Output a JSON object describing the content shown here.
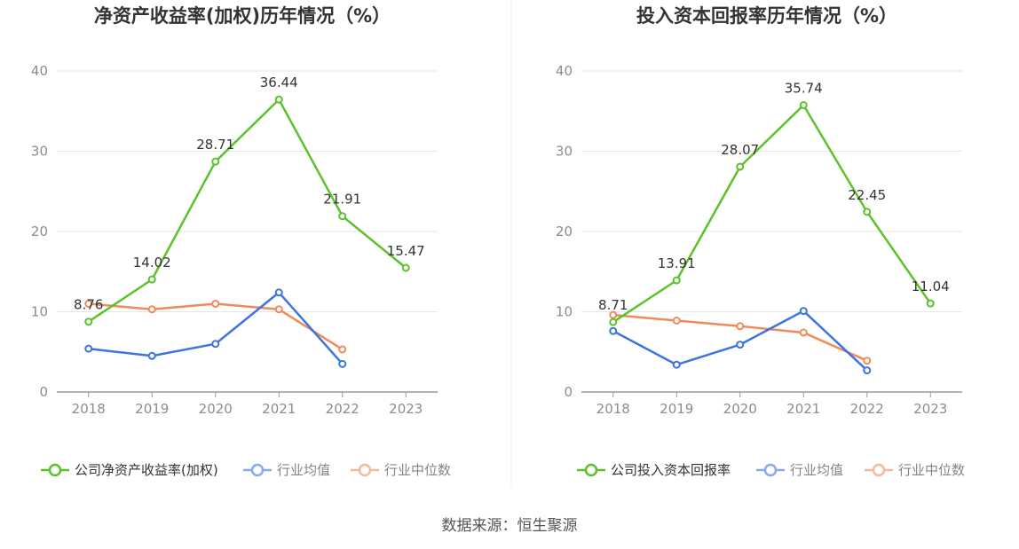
{
  "source": "数据来源：恒生聚源",
  "colors": {
    "company": "#5cc22b",
    "avg": "#3c74e0",
    "median": "#f08a5d"
  },
  "chart_data": [
    {
      "type": "line",
      "title": "净资产收益率(加权)历年情况（%）",
      "x": [
        "2018",
        "2019",
        "2020",
        "2021",
        "2022",
        "2023"
      ],
      "ylim": [
        0,
        40
      ],
      "yticks": [
        "0",
        "10",
        "20",
        "30",
        "40"
      ],
      "grid": true,
      "legend_position": "bottom",
      "series": [
        {
          "name": "公司净资产收益率(加权)",
          "key": "company",
          "values": [
            8.76,
            14.02,
            28.71,
            36.44,
            21.91,
            15.47
          ],
          "labels": [
            "8.76",
            "14.02",
            "28.71",
            "36.44",
            "21.91",
            "15.47"
          ]
        },
        {
          "name": "行业均值",
          "key": "avg",
          "values": [
            5.4,
            4.5,
            6.0,
            12.4,
            3.5,
            null
          ]
        },
        {
          "name": "行业中位数",
          "key": "median",
          "values": [
            11.0,
            10.3,
            11.0,
            10.3,
            5.3,
            null
          ]
        }
      ]
    },
    {
      "type": "line",
      "title": "投入资本回报率历年情况（%）",
      "x": [
        "2018",
        "2019",
        "2020",
        "2021",
        "2022",
        "2023"
      ],
      "ylim": [
        0,
        40
      ],
      "yticks": [
        "0",
        "10",
        "20",
        "30",
        "40"
      ],
      "grid": true,
      "legend_position": "bottom",
      "series": [
        {
          "name": "公司投入资本回报率",
          "key": "company",
          "values": [
            8.71,
            13.91,
            28.07,
            35.74,
            22.45,
            11.04
          ],
          "labels": [
            "8.71",
            "13.91",
            "28.07",
            "35.74",
            "22.45",
            "11.04"
          ]
        },
        {
          "name": "行业均值",
          "key": "avg",
          "values": [
            7.6,
            3.4,
            5.9,
            10.1,
            2.7,
            null
          ]
        },
        {
          "name": "行业中位数",
          "key": "median",
          "values": [
            9.6,
            8.9,
            8.2,
            7.4,
            3.9,
            null
          ]
        }
      ]
    }
  ]
}
